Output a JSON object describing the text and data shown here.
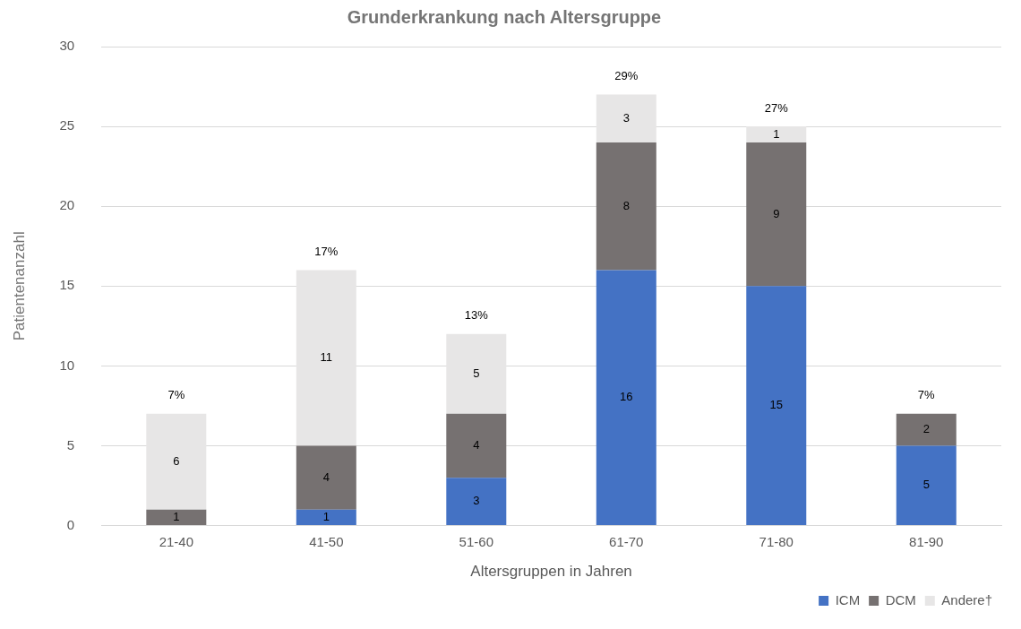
{
  "chart_data": {
    "type": "bar",
    "title": "Grunderkrankung nach Altersgruppe",
    "xlabel": "Altersgruppen in Jahren",
    "ylabel": "Patientenanzahl",
    "categories": [
      "21-40",
      "41-50",
      "51-60",
      "61-70",
      "71-80",
      "81-90"
    ],
    "series": [
      {
        "name": "ICM",
        "color": "#4472c4",
        "values": [
          null,
          1,
          3,
          16,
          15,
          5
        ]
      },
      {
        "name": "DCM",
        "color": "#767171",
        "values": [
          1,
          4,
          4,
          8,
          9,
          2
        ]
      },
      {
        "name": "Andere†",
        "color": "#e7e6e6",
        "values": [
          6,
          11,
          5,
          3,
          1,
          null
        ]
      }
    ],
    "stacked": true,
    "ylim": [
      0,
      30
    ],
    "yticks": [
      0,
      5,
      10,
      15,
      20,
      25,
      30
    ],
    "grid": "y",
    "legend": "bottom right",
    "data_labels": true,
    "totals": [
      "7%",
      "17%",
      "13%",
      "29%",
      "27%",
      "7%"
    ]
  }
}
